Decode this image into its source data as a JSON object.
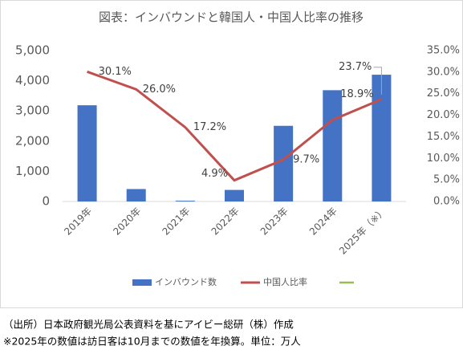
{
  "chart_data": {
    "type": "bar_line",
    "title": "図表：インバウンドと韓国人・中国人比率の推移",
    "categories": [
      "2019年",
      "2020年",
      "2021年",
      "2022年",
      "2023年",
      "2024年",
      "2025年（※）"
    ],
    "series": [
      {
        "name": "インバウンド数",
        "type": "bar",
        "color": "#4472c4",
        "values": [
          3188,
          412,
          25,
          383,
          2507,
          3687,
          4200
        ]
      },
      {
        "name": "中国人比率",
        "type": "line",
        "axis": "y2",
        "color": "#c0504d",
        "values": [
          30.1,
          26.0,
          17.2,
          4.9,
          9.7,
          18.9,
          23.7
        ],
        "value_labels": [
          "30.1%",
          "26.0%",
          "17.2%",
          "4.9%",
          "9.7%",
          "18.9%",
          "23.7%"
        ]
      }
    ],
    "ylim": [
      0,
      5000
    ],
    "yticks": [
      0,
      {
        "value": 1000,
        "label": "1,000"
      },
      {
        "value": 2000,
        "label": "2,000"
      },
      {
        "value": 3000,
        "label": "3,000"
      },
      {
        "value": 4000,
        "label": "4,000"
      },
      {
        "value": 5000,
        "label": "5,000"
      }
    ],
    "y2lim": [
      0,
      35
    ],
    "y2ticks": [
      {
        "value": 0,
        "label": "0.0%"
      },
      {
        "value": 5,
        "label": "5.0%"
      },
      {
        "value": 10,
        "label": "10.0%"
      },
      {
        "value": 15,
        "label": "15.0%"
      },
      {
        "value": 20,
        "label": "20.0%"
      },
      {
        "value": 25,
        "label": "25.0%"
      },
      {
        "value": 30,
        "label": "30.0%"
      },
      {
        "value": 35,
        "label": "35.0%"
      }
    ],
    "legend": "bottom",
    "notes": [
      "（出所）日本政府観光局公表資料を基にアイビー総研（株）作成",
      "※2025年の数値は訪日客は10月までの数値を年換算。単位：万人"
    ]
  }
}
